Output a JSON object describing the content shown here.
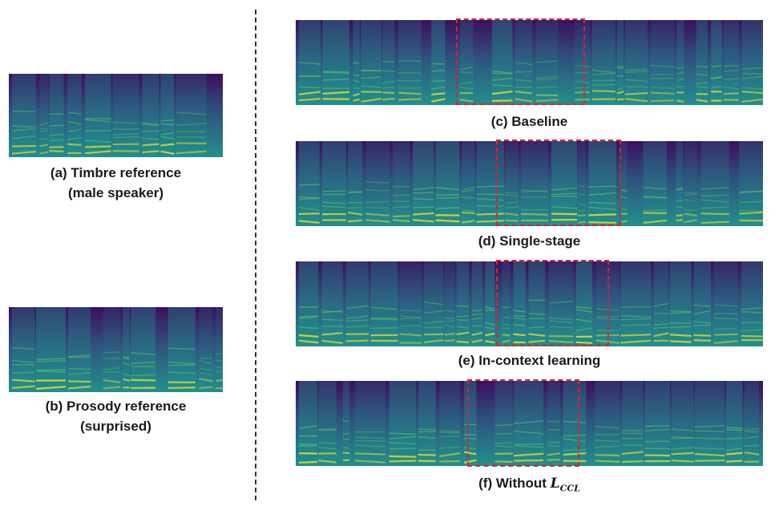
{
  "colors": {
    "background": "#3b0f5e",
    "low": "#30517e",
    "mid": "#21908d",
    "high": "#5cc863",
    "peak": "#fde725",
    "highlight_box": "#e0202a"
  },
  "panels": [
    {
      "id": "a",
      "lines": [
        "(a) Timbre reference",
        "(male speaker)"
      ],
      "highlighted": false
    },
    {
      "id": "b",
      "lines": [
        "(b) Prosody reference",
        "(surprised)"
      ],
      "highlighted": false
    },
    {
      "id": "c",
      "lines": [
        "(c) Baseline"
      ],
      "highlighted": true
    },
    {
      "id": "d",
      "lines": [
        "(d) Single-stage"
      ],
      "highlighted": true
    },
    {
      "id": "e",
      "lines": [
        "(e) In-context learning"
      ],
      "highlighted": true
    },
    {
      "id": "f",
      "lines": [
        "(f) Without "
      ],
      "math": {
        "base": "L",
        "sub": "CCL"
      },
      "highlighted": true
    }
  ]
}
